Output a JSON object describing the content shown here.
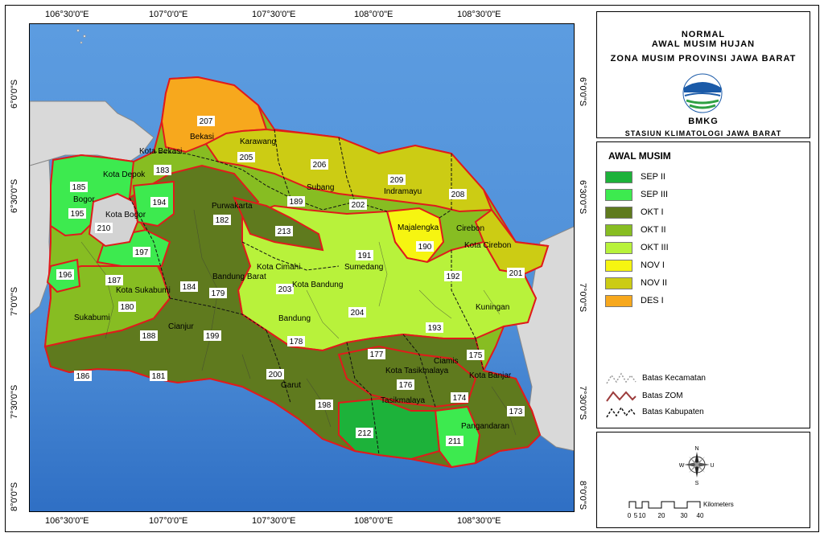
{
  "header": {
    "line1": "NORMAL",
    "line2": "AWAL MUSIM HUJAN",
    "line3": "ZONA MUSIM PROVINSI JAWA BARAT",
    "org": "BMKG",
    "station": "STASIUN KLIMATOLOGI JAWA BARAT"
  },
  "axes": {
    "top_ticks": [
      "106°30'0\"E",
      "107°0'0\"E",
      "107°30'0\"E",
      "108°0'0\"E",
      "108°30'0\"E"
    ],
    "bottom_ticks": [
      "106°30'0\"E",
      "107°0'0\"E",
      "107°30'0\"E",
      "108°0'0\"E",
      "108°30'0\"E"
    ],
    "left_ticks": [
      "6°0'0\"S",
      "6°30'0\"S",
      "7°0'0\"S",
      "7°30'0\"S",
      "8°0'0\"S"
    ],
    "right_ticks": [
      "6°0'0\"S",
      "6°30'0\"S",
      "7°0'0\"S",
      "7°30'0\"S",
      "8°0'0\"S"
    ]
  },
  "legend": {
    "title": "AWAL MUSIM",
    "items": [
      {
        "label": "SEP II",
        "color": "#1db23a"
      },
      {
        "label": "SEP III",
        "color": "#3dea4f"
      },
      {
        "label": "OKT I",
        "color": "#5f7a1e"
      },
      {
        "label": "OKT II",
        "color": "#87bd22"
      },
      {
        "label": "OKT III",
        "color": "#b8f23b"
      },
      {
        "label": "NOV I",
        "color": "#f6f511"
      },
      {
        "label": "NOV II",
        "color": "#cccc14"
      },
      {
        "label": "DES I",
        "color": "#f7a81d"
      }
    ],
    "lines": [
      {
        "label": "Batas Kecamatan"
      },
      {
        "label": "Batas ZOM"
      },
      {
        "label": "Batas Kabupaten"
      }
    ]
  },
  "compass": {
    "n": "N",
    "s": "S",
    "e": "U",
    "w": "W"
  },
  "scale": {
    "unit": "Kilometers",
    "labels": [
      "0",
      "5",
      "10",
      "20",
      "30",
      "40"
    ]
  },
  "regions": [
    "Kota Bekasi",
    "Bekasi",
    "Karawang",
    "Kota Depok",
    "Bogor",
    "Kota Bogor",
    "Purwakarta",
    "Subang",
    "Indramayu",
    "Majalengka",
    "Cirebon",
    "Kota Cirebon",
    "Sumedang",
    "Kota Cimahi",
    "Bandung Barat",
    "Kota Bandung",
    "Bandung",
    "Kota Sukabumi",
    "Sukabumi",
    "Cianjur",
    "Garut",
    "Kuningan",
    "Ciamis",
    "Kota Tasikmalaya",
    "Tasikmalaya",
    "Kota Banjar",
    "Pangandaran"
  ],
  "zones": [
    "207",
    "205",
    "206",
    "209",
    "208",
    "185",
    "183",
    "195",
    "210",
    "194",
    "189",
    "202",
    "182",
    "213",
    "190",
    "191",
    "197",
    "192",
    "201",
    "196",
    "187",
    "184",
    "179",
    "203",
    "180",
    "204",
    "188",
    "199",
    "178",
    "193",
    "177",
    "175",
    "186",
    "181",
    "200",
    "176",
    "174",
    "198",
    "173",
    "212",
    "211"
  ],
  "colors": {
    "sea": "#4f90d6",
    "land_other": "#d9d9d9",
    "zom_border": "#e01b1b"
  }
}
